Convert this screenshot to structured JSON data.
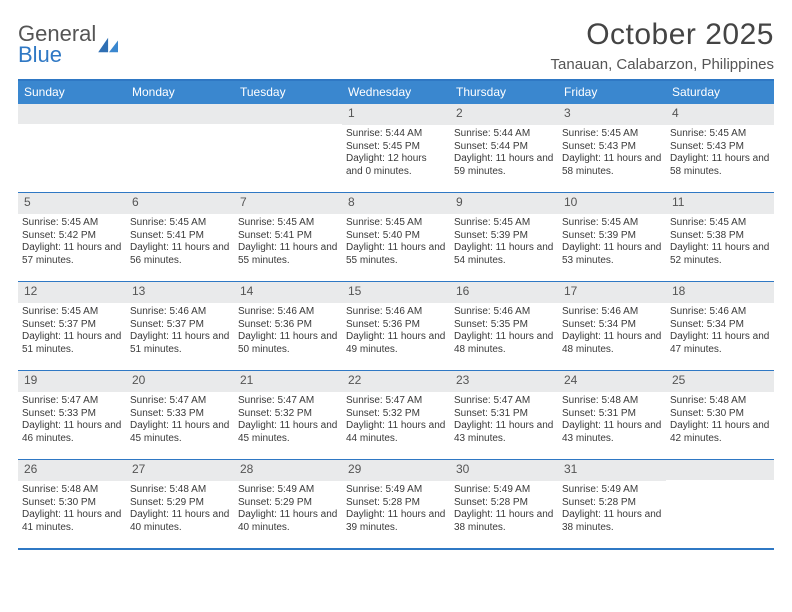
{
  "brand": {
    "line1": "General",
    "line2": "Blue"
  },
  "title": "October 2025",
  "location": "Tanauan, Calabarzon, Philippines",
  "colors": {
    "header_bg": "#3a87cf",
    "rule": "#2f78c4",
    "daynum_bg": "#e9eaeb",
    "text": "#3a3a3a",
    "page_bg": "#ffffff"
  },
  "typography": {
    "title_fontsize": 30,
    "location_fontsize": 15,
    "dow_fontsize": 12,
    "daynum_fontsize": 12,
    "detail_fontsize": 10
  },
  "days_of_week": [
    "Sunday",
    "Monday",
    "Tuesday",
    "Wednesday",
    "Thursday",
    "Friday",
    "Saturday"
  ],
  "weeks": [
    [
      {
        "day": "",
        "sunrise": "",
        "sunset": "",
        "daylight": ""
      },
      {
        "day": "",
        "sunrise": "",
        "sunset": "",
        "daylight": ""
      },
      {
        "day": "",
        "sunrise": "",
        "sunset": "",
        "daylight": ""
      },
      {
        "day": "1",
        "sunrise": "Sunrise: 5:44 AM",
        "sunset": "Sunset: 5:45 PM",
        "daylight": "Daylight: 12 hours and 0 minutes."
      },
      {
        "day": "2",
        "sunrise": "Sunrise: 5:44 AM",
        "sunset": "Sunset: 5:44 PM",
        "daylight": "Daylight: 11 hours and 59 minutes."
      },
      {
        "day": "3",
        "sunrise": "Sunrise: 5:45 AM",
        "sunset": "Sunset: 5:43 PM",
        "daylight": "Daylight: 11 hours and 58 minutes."
      },
      {
        "day": "4",
        "sunrise": "Sunrise: 5:45 AM",
        "sunset": "Sunset: 5:43 PM",
        "daylight": "Daylight: 11 hours and 58 minutes."
      }
    ],
    [
      {
        "day": "5",
        "sunrise": "Sunrise: 5:45 AM",
        "sunset": "Sunset: 5:42 PM",
        "daylight": "Daylight: 11 hours and 57 minutes."
      },
      {
        "day": "6",
        "sunrise": "Sunrise: 5:45 AM",
        "sunset": "Sunset: 5:41 PM",
        "daylight": "Daylight: 11 hours and 56 minutes."
      },
      {
        "day": "7",
        "sunrise": "Sunrise: 5:45 AM",
        "sunset": "Sunset: 5:41 PM",
        "daylight": "Daylight: 11 hours and 55 minutes."
      },
      {
        "day": "8",
        "sunrise": "Sunrise: 5:45 AM",
        "sunset": "Sunset: 5:40 PM",
        "daylight": "Daylight: 11 hours and 55 minutes."
      },
      {
        "day": "9",
        "sunrise": "Sunrise: 5:45 AM",
        "sunset": "Sunset: 5:39 PM",
        "daylight": "Daylight: 11 hours and 54 minutes."
      },
      {
        "day": "10",
        "sunrise": "Sunrise: 5:45 AM",
        "sunset": "Sunset: 5:39 PM",
        "daylight": "Daylight: 11 hours and 53 minutes."
      },
      {
        "day": "11",
        "sunrise": "Sunrise: 5:45 AM",
        "sunset": "Sunset: 5:38 PM",
        "daylight": "Daylight: 11 hours and 52 minutes."
      }
    ],
    [
      {
        "day": "12",
        "sunrise": "Sunrise: 5:45 AM",
        "sunset": "Sunset: 5:37 PM",
        "daylight": "Daylight: 11 hours and 51 minutes."
      },
      {
        "day": "13",
        "sunrise": "Sunrise: 5:46 AM",
        "sunset": "Sunset: 5:37 PM",
        "daylight": "Daylight: 11 hours and 51 minutes."
      },
      {
        "day": "14",
        "sunrise": "Sunrise: 5:46 AM",
        "sunset": "Sunset: 5:36 PM",
        "daylight": "Daylight: 11 hours and 50 minutes."
      },
      {
        "day": "15",
        "sunrise": "Sunrise: 5:46 AM",
        "sunset": "Sunset: 5:36 PM",
        "daylight": "Daylight: 11 hours and 49 minutes."
      },
      {
        "day": "16",
        "sunrise": "Sunrise: 5:46 AM",
        "sunset": "Sunset: 5:35 PM",
        "daylight": "Daylight: 11 hours and 48 minutes."
      },
      {
        "day": "17",
        "sunrise": "Sunrise: 5:46 AM",
        "sunset": "Sunset: 5:34 PM",
        "daylight": "Daylight: 11 hours and 48 minutes."
      },
      {
        "day": "18",
        "sunrise": "Sunrise: 5:46 AM",
        "sunset": "Sunset: 5:34 PM",
        "daylight": "Daylight: 11 hours and 47 minutes."
      }
    ],
    [
      {
        "day": "19",
        "sunrise": "Sunrise: 5:47 AM",
        "sunset": "Sunset: 5:33 PM",
        "daylight": "Daylight: 11 hours and 46 minutes."
      },
      {
        "day": "20",
        "sunrise": "Sunrise: 5:47 AM",
        "sunset": "Sunset: 5:33 PM",
        "daylight": "Daylight: 11 hours and 45 minutes."
      },
      {
        "day": "21",
        "sunrise": "Sunrise: 5:47 AM",
        "sunset": "Sunset: 5:32 PM",
        "daylight": "Daylight: 11 hours and 45 minutes."
      },
      {
        "day": "22",
        "sunrise": "Sunrise: 5:47 AM",
        "sunset": "Sunset: 5:32 PM",
        "daylight": "Daylight: 11 hours and 44 minutes."
      },
      {
        "day": "23",
        "sunrise": "Sunrise: 5:47 AM",
        "sunset": "Sunset: 5:31 PM",
        "daylight": "Daylight: 11 hours and 43 minutes."
      },
      {
        "day": "24",
        "sunrise": "Sunrise: 5:48 AM",
        "sunset": "Sunset: 5:31 PM",
        "daylight": "Daylight: 11 hours and 43 minutes."
      },
      {
        "day": "25",
        "sunrise": "Sunrise: 5:48 AM",
        "sunset": "Sunset: 5:30 PM",
        "daylight": "Daylight: 11 hours and 42 minutes."
      }
    ],
    [
      {
        "day": "26",
        "sunrise": "Sunrise: 5:48 AM",
        "sunset": "Sunset: 5:30 PM",
        "daylight": "Daylight: 11 hours and 41 minutes."
      },
      {
        "day": "27",
        "sunrise": "Sunrise: 5:48 AM",
        "sunset": "Sunset: 5:29 PM",
        "daylight": "Daylight: 11 hours and 40 minutes."
      },
      {
        "day": "28",
        "sunrise": "Sunrise: 5:49 AM",
        "sunset": "Sunset: 5:29 PM",
        "daylight": "Daylight: 11 hours and 40 minutes."
      },
      {
        "day": "29",
        "sunrise": "Sunrise: 5:49 AM",
        "sunset": "Sunset: 5:28 PM",
        "daylight": "Daylight: 11 hours and 39 minutes."
      },
      {
        "day": "30",
        "sunrise": "Sunrise: 5:49 AM",
        "sunset": "Sunset: 5:28 PM",
        "daylight": "Daylight: 11 hours and 38 minutes."
      },
      {
        "day": "31",
        "sunrise": "Sunrise: 5:49 AM",
        "sunset": "Sunset: 5:28 PM",
        "daylight": "Daylight: 11 hours and 38 minutes."
      },
      {
        "day": "",
        "sunrise": "",
        "sunset": "",
        "daylight": ""
      }
    ]
  ]
}
